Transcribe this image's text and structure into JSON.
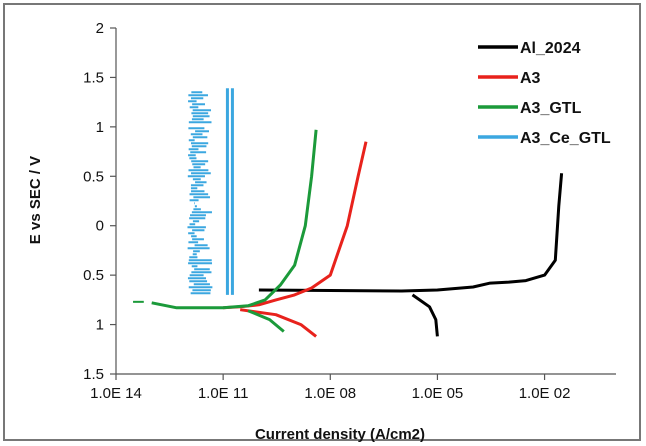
{
  "chart_data": {
    "type": "line",
    "title": "",
    "xlabel": "Current density (A/cm2)",
    "ylabel": "E vs SEC / V",
    "x_scale": "log",
    "xlim": [
      1e-14,
      1
    ],
    "ylim": [
      -1.5,
      2
    ],
    "x_ticks": [
      {
        "value": 1e-14,
        "label": "1.0E 14"
      },
      {
        "value": 1e-11,
        "label": "1.0E 11"
      },
      {
        "value": 1e-08,
        "label": "1.0E 08"
      },
      {
        "value": 1e-05,
        "label": "1.0E 05"
      },
      {
        "value": 0.01,
        "label": "1.0E 02"
      }
    ],
    "y_ticks": [
      {
        "value": 2,
        "label": "2"
      },
      {
        "value": 1.5,
        "label": "1.5"
      },
      {
        "value": 1,
        "label": "1"
      },
      {
        "value": 0.5,
        "label": "0.5"
      },
      {
        "value": 0,
        "label": "0"
      },
      {
        "value": -0.5,
        "label": "0.5"
      },
      {
        "value": -1,
        "label": "1"
      },
      {
        "value": -1.5,
        "label": "1.5"
      }
    ],
    "legend_position": "top-right",
    "series": [
      {
        "name": "Al_2024",
        "color": "#000000",
        "points": [
          [
            1e-10,
            -0.65
          ],
          [
            1e-08,
            -0.655
          ],
          [
            1e-06,
            -0.66
          ],
          [
            1e-05,
            -0.65
          ],
          [
            0.0001,
            -0.62
          ],
          [
            0.0003,
            -0.58
          ],
          [
            0.001,
            -0.57
          ],
          [
            0.003,
            -0.555
          ],
          [
            0.01,
            -0.5
          ],
          [
            0.02,
            -0.35
          ],
          [
            0.025,
            0.2
          ],
          [
            0.03,
            0.53
          ]
        ],
        "cathodic_branch": [
          [
            2e-06,
            -0.7
          ],
          [
            6e-06,
            -0.82
          ],
          [
            9e-06,
            -0.95
          ],
          [
            1e-05,
            -1.12
          ]
        ]
      },
      {
        "name": "A3",
        "color": "#e8221c",
        "points": [
          [
            1e-11,
            -0.83
          ],
          [
            3e-11,
            -0.82
          ],
          [
            1e-10,
            -0.8
          ],
          [
            3e-10,
            -0.75
          ],
          [
            1e-09,
            -0.7
          ],
          [
            3e-09,
            -0.63
          ],
          [
            1e-08,
            -0.5
          ],
          [
            3e-08,
            0
          ],
          [
            6e-08,
            0.5
          ],
          [
            1e-07,
            0.85
          ]
        ],
        "cathodic_branch": [
          [
            3e-11,
            -0.85
          ],
          [
            3e-10,
            -0.9
          ],
          [
            1.5e-09,
            -1.0
          ],
          [
            4e-09,
            -1.12
          ]
        ]
      },
      {
        "name": "A3_GTL",
        "color": "#1b9a3a",
        "points": [
          [
            1e-13,
            -0.78
          ],
          [
            5e-13,
            -0.83
          ],
          [
            1e-11,
            -0.83
          ],
          [
            5e-11,
            -0.81
          ],
          [
            1.5e-10,
            -0.75
          ],
          [
            4e-10,
            -0.6
          ],
          [
            1e-09,
            -0.4
          ],
          [
            2e-09,
            0
          ],
          [
            3e-09,
            0.5
          ],
          [
            4e-09,
            0.97
          ]
        ],
        "cathodic_branch": [
          [
            5e-11,
            -0.86
          ],
          [
            2e-10,
            -0.95
          ],
          [
            5e-10,
            -1.07
          ]
        ]
      },
      {
        "name": "A3_Ce_GTL",
        "color": "#3ba7e0",
        "band_x": [
          1e-12,
          5e-12
        ],
        "band_y": [
          -0.7,
          1.35
        ]
      }
    ]
  }
}
